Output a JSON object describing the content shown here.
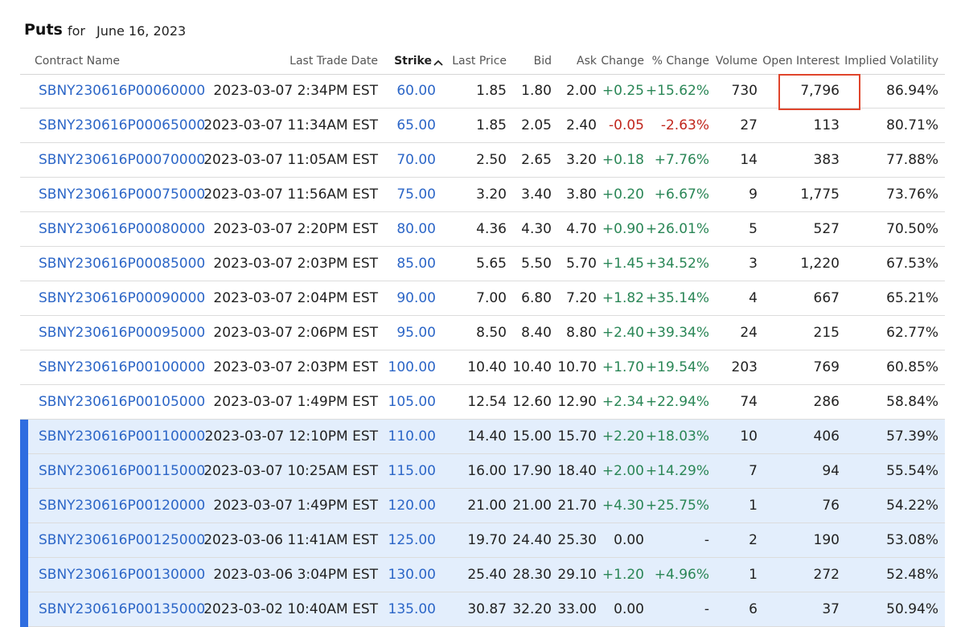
{
  "header": {
    "title": "Puts",
    "for": "for",
    "date": "June 16, 2023"
  },
  "table": {
    "columns": [
      "Contract Name",
      "Last Trade Date",
      "Strike",
      "Last Price",
      "Bid",
      "Ask",
      "Change",
      "% Change",
      "Volume",
      "Open Interest",
      "Implied Volatility"
    ],
    "rows": [
      [
        "SBNY230616P00060000",
        "2023-03-07 2:34PM EST",
        "60.00",
        "1.85",
        "1.80",
        "2.00",
        "+0.25",
        "+15.62%",
        "730",
        "7,796",
        "86.94%"
      ],
      [
        "SBNY230616P00065000",
        "2023-03-07 11:34AM EST",
        "65.00",
        "1.85",
        "2.05",
        "2.40",
        "-0.05",
        "-2.63%",
        "27",
        "113",
        "80.71%"
      ],
      [
        "SBNY230616P00070000",
        "2023-03-07 11:05AM EST",
        "70.00",
        "2.50",
        "2.65",
        "3.20",
        "+0.18",
        "+7.76%",
        "14",
        "383",
        "77.88%"
      ],
      [
        "SBNY230616P00075000",
        "2023-03-07 11:56AM EST",
        "75.00",
        "3.20",
        "3.40",
        "3.80",
        "+0.20",
        "+6.67%",
        "9",
        "1,775",
        "73.76%"
      ],
      [
        "SBNY230616P00080000",
        "2023-03-07 2:20PM EST",
        "80.00",
        "4.36",
        "4.30",
        "4.70",
        "+0.90",
        "+26.01%",
        "5",
        "527",
        "70.50%"
      ],
      [
        "SBNY230616P00085000",
        "2023-03-07 2:03PM EST",
        "85.00",
        "5.65",
        "5.50",
        "5.70",
        "+1.45",
        "+34.52%",
        "3",
        "1,220",
        "67.53%"
      ],
      [
        "SBNY230616P00090000",
        "2023-03-07 2:04PM EST",
        "90.00",
        "7.00",
        "6.80",
        "7.20",
        "+1.82",
        "+35.14%",
        "4",
        "667",
        "65.21%"
      ],
      [
        "SBNY230616P00095000",
        "2023-03-07 2:06PM EST",
        "95.00",
        "8.50",
        "8.40",
        "8.80",
        "+2.40",
        "+39.34%",
        "24",
        "215",
        "62.77%"
      ],
      [
        "SBNY230616P00100000",
        "2023-03-07 2:03PM EST",
        "100.00",
        "10.40",
        "10.40",
        "10.70",
        "+1.70",
        "+19.54%",
        "203",
        "769",
        "60.85%"
      ],
      [
        "SBNY230616P00105000",
        "2023-03-07 1:49PM EST",
        "105.00",
        "12.54",
        "12.60",
        "12.90",
        "+2.34",
        "+22.94%",
        "74",
        "286",
        "58.84%"
      ],
      [
        "SBNY230616P00110000",
        "2023-03-07 12:10PM EST",
        "110.00",
        "14.40",
        "15.00",
        "15.70",
        "+2.20",
        "+18.03%",
        "10",
        "406",
        "57.39%"
      ],
      [
        "SBNY230616P00115000",
        "2023-03-07 10:25AM EST",
        "115.00",
        "16.00",
        "17.90",
        "18.40",
        "+2.00",
        "+14.29%",
        "7",
        "94",
        "55.54%"
      ],
      [
        "SBNY230616P00120000",
        "2023-03-07 1:49PM EST",
        "120.00",
        "21.00",
        "21.00",
        "21.70",
        "+4.30",
        "+25.75%",
        "1",
        "76",
        "54.22%"
      ],
      [
        "SBNY230616P00125000",
        "2023-03-06 11:41AM EST",
        "125.00",
        "19.70",
        "24.40",
        "25.30",
        "0.00",
        "-",
        "2",
        "190",
        "53.08%"
      ],
      [
        "SBNY230616P00130000",
        "2023-03-06 3:04PM EST",
        "130.00",
        "25.40",
        "28.30",
        "29.10",
        "+1.20",
        "+4.96%",
        "1",
        "272",
        "52.48%"
      ],
      [
        "SBNY230616P00135000",
        "2023-03-02 10:40AM EST",
        "135.00",
        "30.87",
        "32.20",
        "33.00",
        "0.00",
        "-",
        "6",
        "37",
        "50.94%"
      ]
    ]
  }
}
